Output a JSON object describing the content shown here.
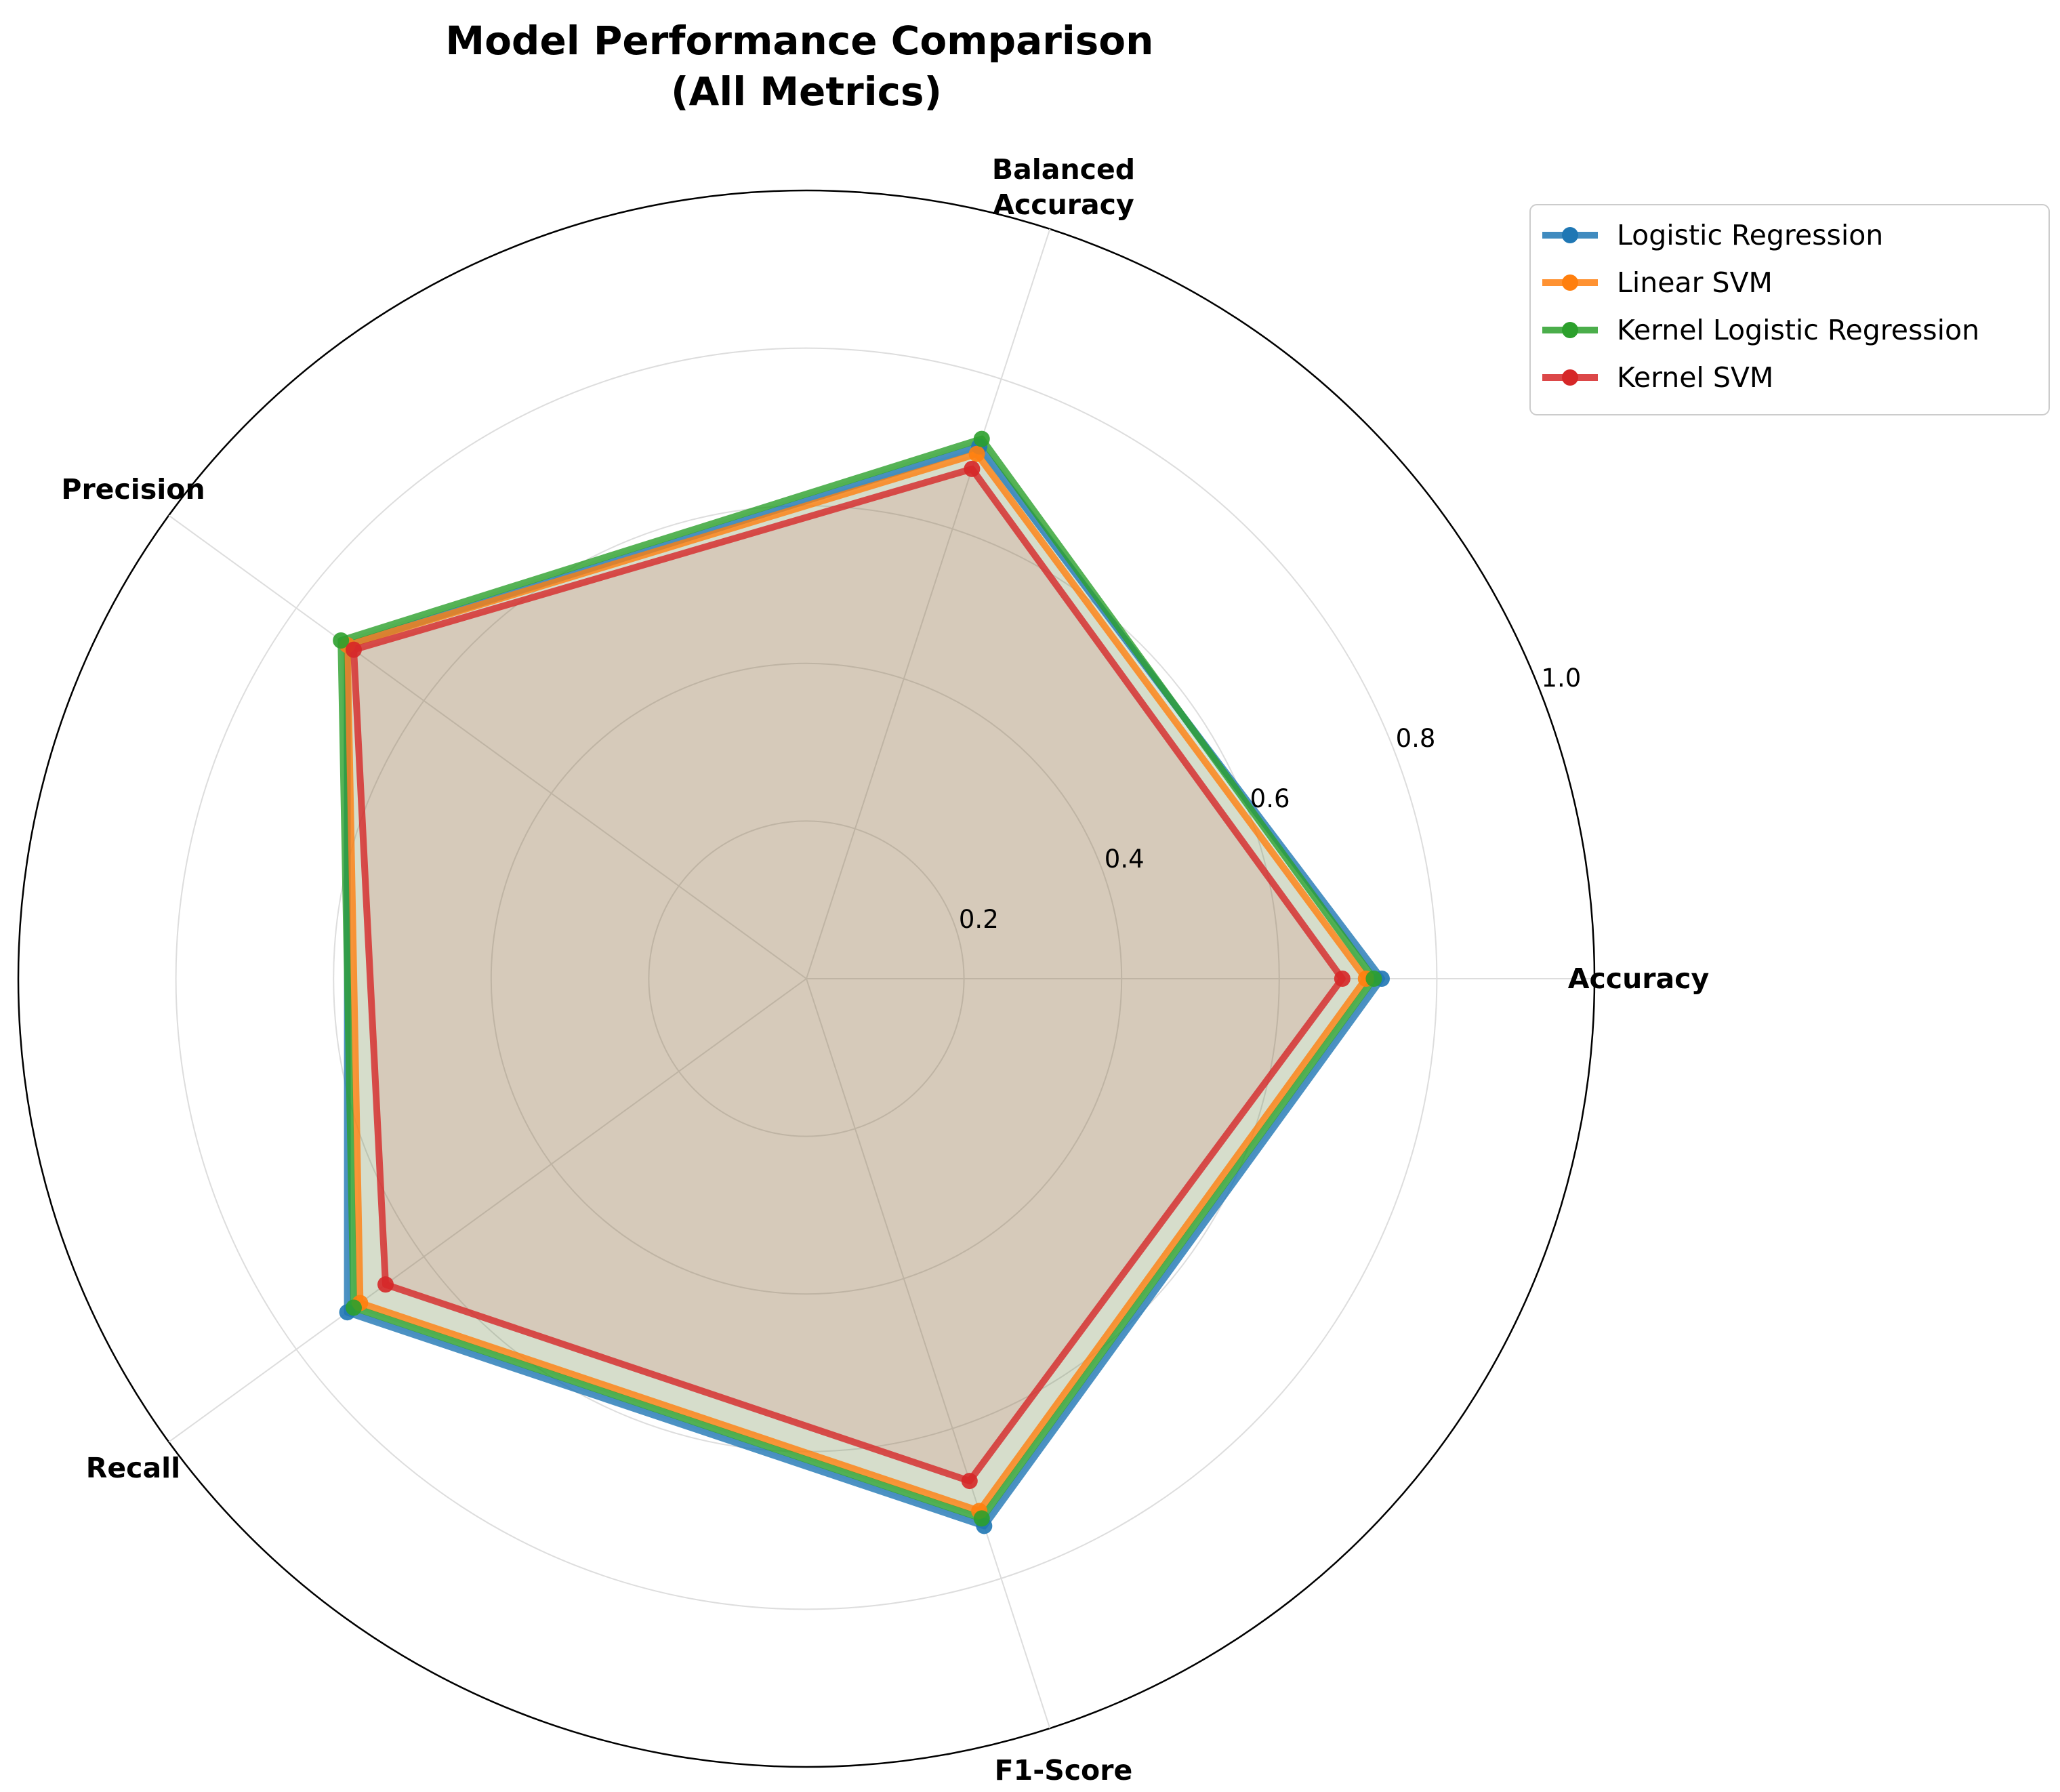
{
  "chart_data": {
    "type": "radar",
    "title": "Model Performance Comparison\n(All Metrics)",
    "categories": [
      "Accuracy",
      "Balanced\nAccuracy",
      "Precision",
      "Recall",
      "F1-Score"
    ],
    "rlim": [
      0,
      1.0
    ],
    "rticks": [
      0.2,
      0.4,
      0.6,
      0.8,
      1.0
    ],
    "rtick_labels": [
      "0.2",
      "0.4",
      "0.6",
      "0.8",
      "1.0"
    ],
    "grid": true,
    "legend_position": "upper right, outside plot",
    "series": [
      {
        "name": "Logistic Regression",
        "color": "#1f77b4",
        "values": [
          0.73,
          0.71,
          0.72,
          0.72,
          0.73
        ]
      },
      {
        "name": "Linear SVM",
        "color": "#ff7f0e",
        "values": [
          0.71,
          0.7,
          0.72,
          0.7,
          0.71
        ]
      },
      {
        "name": "Kernel Logistic Regression",
        "color": "#2ca02c",
        "values": [
          0.72,
          0.72,
          0.73,
          0.71,
          0.72
        ]
      },
      {
        "name": "Kernel SVM",
        "color": "#d62728",
        "values": [
          0.68,
          0.68,
          0.71,
          0.66,
          0.67
        ]
      }
    ]
  }
}
